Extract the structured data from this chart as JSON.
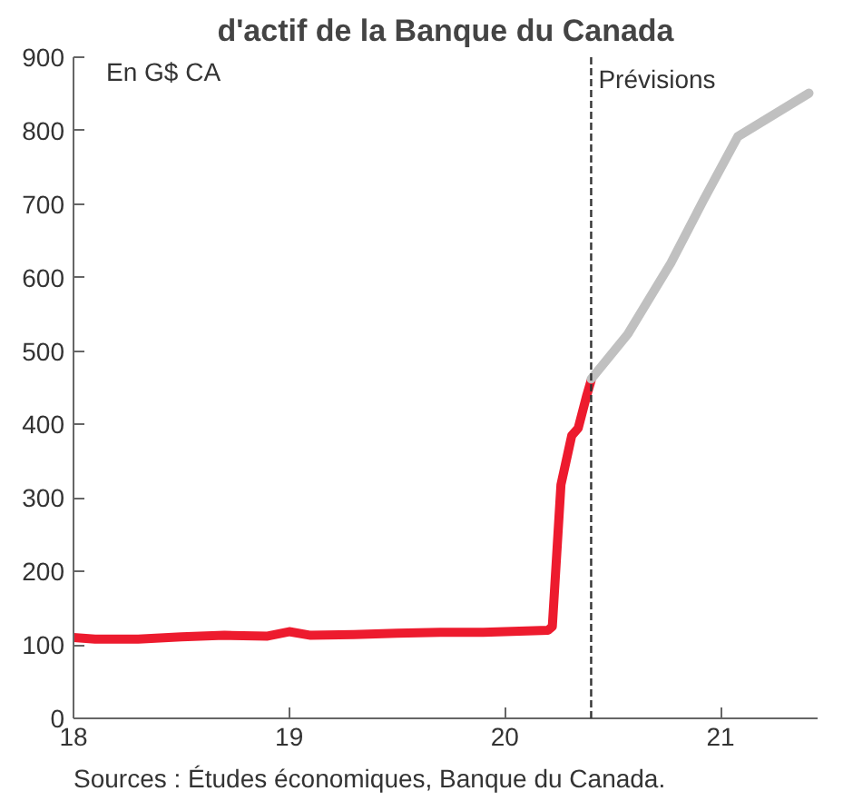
{
  "chart_data": {
    "type": "line",
    "title": "d'actif de la Banque du Canada",
    "xlim": [
      18,
      21.45
    ],
    "xticks": [
      18,
      19,
      20,
      21
    ],
    "ylim": [
      0,
      900
    ],
    "yticks": [
      0,
      100,
      200,
      300,
      400,
      500,
      600,
      700,
      800,
      900
    ],
    "grid": false,
    "series": [
      {
        "color": "#ed1b2e",
        "x": [
          18,
          18.1,
          18.3,
          18.5,
          18.7,
          18.9,
          19.0,
          19.1,
          19.3,
          19.5,
          19.7,
          19.9,
          20.0,
          20.1,
          20.2,
          20.22,
          20.26,
          20.31,
          20.34,
          20.38,
          20.4
        ],
        "values": [
          110,
          108,
          108,
          111,
          113,
          112,
          118,
          113,
          114,
          116,
          117,
          117,
          118,
          119,
          120,
          125,
          318,
          385,
          395,
          440,
          460
        ]
      },
      {
        "color": "#c0c0c0",
        "x": [
          20.4,
          20.57,
          20.77,
          20.92,
          21.08,
          21.41
        ],
        "values": [
          462,
          523,
          620,
          705,
          792,
          851
        ]
      }
    ],
    "ref_lines": [
      {
        "axis": "x",
        "value": 20.4,
        "label": "Prévisions",
        "color": "#333333",
        "line_style": "dashed"
      }
    ],
    "annotations": [
      "En G$ CA",
      "Sources : Études économiques, Banque du Canada."
    ]
  }
}
